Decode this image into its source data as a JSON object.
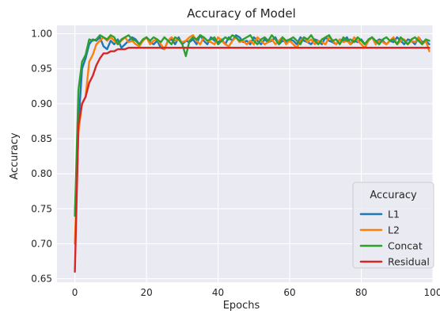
{
  "chart_data": {
    "type": "line",
    "title": "Accuracy of Model",
    "xlabel": "Epochs",
    "ylabel": "Accuracy",
    "xlim": [
      -5,
      100
    ],
    "ylim": [
      0.645,
      1.012
    ],
    "xticks": [
      0,
      20,
      40,
      60,
      80,
      100
    ],
    "yticks": [
      0.65,
      0.7,
      0.75,
      0.8,
      0.85,
      0.9,
      0.95,
      1.0
    ],
    "grid": true,
    "legend": {
      "title": "Accuracy",
      "placement": "lower-right"
    },
    "series": [
      {
        "name": "L1",
        "color": "#1f77b4",
        "x": [
          0,
          1,
          2,
          3,
          4,
          5,
          6,
          7,
          8,
          9,
          10,
          11,
          12,
          13,
          14,
          15,
          16,
          17,
          18,
          19,
          20,
          21,
          22,
          23,
          24,
          25,
          26,
          27,
          28,
          29,
          30,
          31,
          32,
          33,
          34,
          35,
          36,
          37,
          38,
          39,
          40,
          41,
          42,
          43,
          44,
          45,
          46,
          47,
          48,
          49,
          50,
          51,
          52,
          53,
          54,
          55,
          56,
          57,
          58,
          59,
          60,
          61,
          62,
          63,
          64,
          65,
          66,
          67,
          68,
          69,
          70,
          71,
          72,
          73,
          74,
          75,
          76,
          77,
          78,
          79,
          80,
          81,
          82,
          83,
          84,
          85,
          86,
          87,
          88,
          89,
          90,
          91,
          92,
          93,
          94,
          95,
          96,
          97,
          98,
          99
        ],
        "y": [
          0.74,
          0.87,
          0.95,
          0.965,
          0.985,
          0.992,
          0.99,
          0.995,
          0.982,
          0.978,
          0.99,
          0.985,
          0.992,
          0.98,
          0.985,
          0.99,
          0.995,
          0.992,
          0.985,
          0.99,
          0.995,
          0.988,
          0.985,
          0.99,
          0.98,
          0.978,
          0.99,
          0.992,
          0.985,
          0.995,
          0.985,
          0.99,
          0.988,
          0.992,
          0.985,
          0.998,
          0.99,
          0.985,
          0.995,
          0.99,
          0.988,
          0.992,
          0.985,
          0.995,
          0.99,
          0.998,
          0.995,
          0.988,
          0.99,
          0.985,
          0.995,
          0.99,
          0.985,
          0.992,
          0.988,
          0.99,
          0.995,
          0.985,
          0.99,
          0.988,
          0.992,
          0.99,
          0.985,
          0.995,
          0.99,
          0.988,
          0.985,
          0.992,
          0.99,
          0.985,
          0.995,
          0.99,
          0.988,
          0.985,
          0.992,
          0.99,
          0.995,
          0.985,
          0.99,
          0.988,
          0.992,
          0.985,
          0.99,
          0.995,
          0.988,
          0.992,
          0.99,
          0.985,
          0.99,
          0.988,
          0.995,
          0.99,
          0.985,
          0.992,
          0.99,
          0.985,
          0.995,
          0.988,
          0.99,
          0.985
        ]
      },
      {
        "name": "L2",
        "color": "#ff7f0e",
        "x": [
          0,
          1,
          2,
          3,
          4,
          5,
          6,
          7,
          8,
          9,
          10,
          11,
          12,
          13,
          14,
          15,
          16,
          17,
          18,
          19,
          20,
          21,
          22,
          23,
          24,
          25,
          26,
          27,
          28,
          29,
          30,
          31,
          32,
          33,
          34,
          35,
          36,
          37,
          38,
          39,
          40,
          41,
          42,
          43,
          44,
          45,
          46,
          47,
          48,
          49,
          50,
          51,
          52,
          53,
          54,
          55,
          56,
          57,
          58,
          59,
          60,
          61,
          62,
          63,
          64,
          65,
          66,
          67,
          68,
          69,
          70,
          71,
          72,
          73,
          74,
          75,
          76,
          77,
          78,
          79,
          80,
          81,
          82,
          83,
          84,
          85,
          86,
          87,
          88,
          89,
          90,
          91,
          92,
          93,
          94,
          95,
          96,
          97,
          98,
          99
        ],
        "y": [
          0.7,
          0.86,
          0.9,
          0.91,
          0.96,
          0.97,
          0.985,
          0.99,
          0.995,
          0.99,
          0.995,
          0.99,
          0.985,
          0.99,
          0.995,
          0.988,
          0.99,
          0.985,
          0.982,
          0.99,
          0.995,
          0.985,
          0.99,
          0.992,
          0.985,
          0.978,
          0.99,
          0.995,
          0.99,
          0.992,
          0.988,
          0.99,
          0.995,
          0.998,
          0.99,
          0.985,
          0.995,
          0.99,
          0.988,
          0.985,
          0.995,
          0.99,
          0.985,
          0.982,
          0.99,
          0.995,
          0.988,
          0.99,
          0.985,
          0.99,
          0.985,
          0.995,
          0.99,
          0.985,
          0.988,
          0.992,
          0.985,
          0.99,
          0.995,
          0.985,
          0.99,
          0.985,
          0.98,
          0.99,
          0.995,
          0.988,
          0.992,
          0.985,
          0.99,
          0.988,
          0.985,
          0.995,
          0.99,
          0.985,
          0.992,
          0.988,
          0.99,
          0.985,
          0.995,
          0.99,
          0.985,
          0.98,
          0.99,
          0.995,
          0.985,
          0.99,
          0.988,
          0.985,
          0.99,
          0.995,
          0.985,
          0.99,
          0.992,
          0.985,
          0.99,
          0.988,
          0.995,
          0.985,
          0.99,
          0.975
        ]
      },
      {
        "name": "Concat",
        "color": "#2ca02c",
        "x": [
          0,
          1,
          2,
          3,
          4,
          5,
          6,
          7,
          8,
          9,
          10,
          11,
          12,
          13,
          14,
          15,
          16,
          17,
          18,
          19,
          20,
          21,
          22,
          23,
          24,
          25,
          26,
          27,
          28,
          29,
          30,
          31,
          32,
          33,
          34,
          35,
          36,
          37,
          38,
          39,
          40,
          41,
          42,
          43,
          44,
          45,
          46,
          47,
          48,
          49,
          50,
          51,
          52,
          53,
          54,
          55,
          56,
          57,
          58,
          59,
          60,
          61,
          62,
          63,
          64,
          65,
          66,
          67,
          68,
          69,
          70,
          71,
          72,
          73,
          74,
          75,
          76,
          77,
          78,
          79,
          80,
          81,
          82,
          83,
          84,
          85,
          86,
          87,
          88,
          89,
          90,
          91,
          92,
          93,
          94,
          95,
          96,
          97,
          98,
          99
        ],
        "y": [
          0.74,
          0.92,
          0.96,
          0.97,
          0.992,
          0.99,
          0.992,
          0.998,
          0.995,
          0.992,
          0.998,
          0.995,
          0.985,
          0.992,
          0.995,
          0.998,
          0.992,
          0.99,
          0.985,
          0.992,
          0.995,
          0.99,
          0.995,
          0.992,
          0.988,
          0.995,
          0.99,
          0.985,
          0.995,
          0.992,
          0.985,
          0.968,
          0.99,
          0.995,
          0.992,
          0.998,
          0.995,
          0.99,
          0.992,
          0.995,
          0.985,
          0.99,
          0.995,
          0.992,
          0.998,
          0.995,
          0.99,
          0.992,
          0.995,
          0.998,
          0.99,
          0.985,
          0.992,
          0.995,
          0.99,
          0.998,
          0.992,
          0.985,
          0.995,
          0.99,
          0.992,
          0.995,
          0.99,
          0.985,
          0.995,
          0.992,
          0.998,
          0.99,
          0.985,
          0.992,
          0.995,
          0.998,
          0.99,
          0.992,
          0.985,
          0.995,
          0.99,
          0.992,
          0.988,
          0.995,
          0.99,
          0.985,
          0.992,
          0.995,
          0.99,
          0.985,
          0.992,
          0.995,
          0.99,
          0.992,
          0.985,
          0.995,
          0.99,
          0.985,
          0.992,
          0.995,
          0.99,
          0.985,
          0.992,
          0.99
        ]
      },
      {
        "name": "Residual",
        "color": "#d62728",
        "x": [
          0,
          1,
          2,
          3,
          4,
          5,
          6,
          7,
          8,
          9,
          10,
          11,
          12,
          13,
          14,
          15,
          16,
          17,
          18,
          19,
          20,
          21,
          22,
          23,
          24,
          25,
          26,
          27,
          28,
          29,
          30,
          31,
          32,
          33,
          34,
          35,
          36,
          37,
          38,
          39,
          40,
          41,
          42,
          43,
          44,
          45,
          46,
          47,
          48,
          49,
          50,
          51,
          52,
          53,
          54,
          55,
          56,
          57,
          58,
          59,
          60,
          61,
          62,
          63,
          64,
          65,
          66,
          67,
          68,
          69,
          70,
          71,
          72,
          73,
          74,
          75,
          76,
          77,
          78,
          79,
          80,
          81,
          82,
          83,
          84,
          85,
          86,
          87,
          88,
          89,
          90,
          91,
          92,
          93,
          94,
          95,
          96,
          97,
          98,
          99
        ],
        "y": [
          0.66,
          0.87,
          0.9,
          0.91,
          0.93,
          0.94,
          0.955,
          0.965,
          0.972,
          0.972,
          0.975,
          0.975,
          0.978,
          0.978,
          0.978,
          0.98,
          0.98,
          0.98,
          0.98,
          0.98,
          0.98,
          0.98,
          0.98,
          0.98,
          0.98,
          0.98,
          0.98,
          0.98,
          0.98,
          0.98,
          0.98,
          0.98,
          0.98,
          0.98,
          0.98,
          0.98,
          0.98,
          0.98,
          0.98,
          0.98,
          0.98,
          0.98,
          0.98,
          0.98,
          0.98,
          0.98,
          0.98,
          0.98,
          0.98,
          0.98,
          0.98,
          0.98,
          0.98,
          0.98,
          0.98,
          0.98,
          0.98,
          0.98,
          0.98,
          0.98,
          0.98,
          0.98,
          0.98,
          0.98,
          0.98,
          0.98,
          0.98,
          0.98,
          0.98,
          0.98,
          0.98,
          0.98,
          0.98,
          0.98,
          0.98,
          0.98,
          0.98,
          0.98,
          0.98,
          0.98,
          0.98,
          0.98,
          0.98,
          0.98,
          0.98,
          0.98,
          0.98,
          0.98,
          0.98,
          0.98,
          0.98,
          0.98,
          0.98,
          0.98,
          0.98,
          0.98,
          0.98,
          0.98,
          0.98,
          0.98
        ]
      }
    ]
  }
}
